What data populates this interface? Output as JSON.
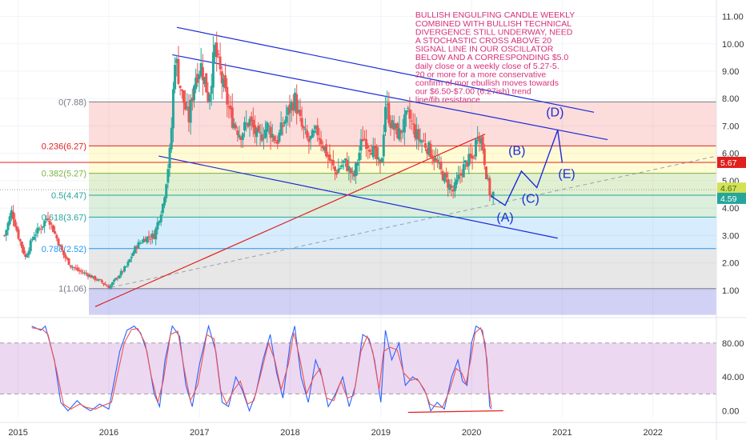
{
  "chart_data": [
    {
      "type": "candlestick",
      "title": "",
      "xlabel": "",
      "ylabel": "",
      "x_range": [
        2014.8,
        2022.7
      ],
      "ylim": [
        0.0,
        11.6
      ],
      "x_ticks": [
        {
          "v": 2015,
          "label": "2015"
        },
        {
          "v": 2016,
          "label": "2016"
        },
        {
          "v": 2017,
          "label": "2017"
        },
        {
          "v": 2018,
          "label": "2018"
        },
        {
          "v": 2019,
          "label": "2019"
        },
        {
          "v": 2020,
          "label": "2020"
        },
        {
          "v": 2021,
          "label": "2021"
        },
        {
          "v": 2022,
          "label": "2022"
        }
      ],
      "y_ticks": [
        {
          "v": 1,
          "label": "1.00"
        },
        {
          "v": 2,
          "label": "2.00"
        },
        {
          "v": 3,
          "label": "3.00"
        },
        {
          "v": 4,
          "label": "4.00"
        },
        {
          "v": 5,
          "label": "5.00"
        },
        {
          "v": 6,
          "label": "6.00"
        },
        {
          "v": 7,
          "label": "7.00"
        },
        {
          "v": 8,
          "label": "8.00"
        },
        {
          "v": 9,
          "label": "9.00"
        },
        {
          "v": 10,
          "label": "10.00"
        },
        {
          "v": 11,
          "label": "11.00"
        }
      ],
      "grid": true,
      "colors": {
        "up": "#26a69a",
        "down": "#ef5350",
        "channel": "#1c2bd6",
        "trendline": "#e0201c",
        "wave": "#1c2bd6",
        "dashed": "#9aa0a6"
      },
      "price_path": [
        [
          2014.85,
          3.0
        ],
        [
          2014.93,
          3.9
        ],
        [
          2015.0,
          3.0
        ],
        [
          2015.08,
          2.2
        ],
        [
          2015.17,
          3.0
        ],
        [
          2015.25,
          3.3
        ],
        [
          2015.33,
          3.7
        ],
        [
          2015.4,
          3.1
        ],
        [
          2015.5,
          2.3
        ],
        [
          2015.58,
          1.9
        ],
        [
          2015.67,
          1.7
        ],
        [
          2015.75,
          1.6
        ],
        [
          2015.83,
          1.45
        ],
        [
          2015.92,
          1.3
        ],
        [
          2016.0,
          1.1
        ],
        [
          2016.1,
          1.5
        ],
        [
          2016.2,
          1.9
        ],
        [
          2016.3,
          2.6
        ],
        [
          2016.4,
          2.9
        ],
        [
          2016.5,
          3.0
        ],
        [
          2016.6,
          4.2
        ],
        [
          2016.68,
          6.2
        ],
        [
          2016.73,
          9.6
        ],
        [
          2016.8,
          8.2
        ],
        [
          2016.88,
          7.2
        ],
        [
          2016.95,
          8.8
        ],
        [
          2017.02,
          9.2
        ],
        [
          2017.1,
          8.0
        ],
        [
          2017.17,
          9.8
        ],
        [
          2017.25,
          8.6
        ],
        [
          2017.35,
          7.3
        ],
        [
          2017.45,
          6.7
        ],
        [
          2017.55,
          7.2
        ],
        [
          2017.65,
          6.5
        ],
        [
          2017.75,
          7.0
        ],
        [
          2017.85,
          6.4
        ],
        [
          2017.95,
          7.3
        ],
        [
          2018.05,
          8.0
        ],
        [
          2018.12,
          7.0
        ],
        [
          2018.2,
          6.4
        ],
        [
          2018.3,
          6.8
        ],
        [
          2018.4,
          6.0
        ],
        [
          2018.5,
          5.3
        ],
        [
          2018.6,
          5.7
        ],
        [
          2018.7,
          5.1
        ],
        [
          2018.8,
          6.6
        ],
        [
          2018.9,
          6.2
        ],
        [
          2019.0,
          5.4
        ],
        [
          2019.05,
          7.8
        ],
        [
          2019.12,
          7.0
        ],
        [
          2019.2,
          6.7
        ],
        [
          2019.3,
          7.4
        ],
        [
          2019.4,
          6.6
        ],
        [
          2019.5,
          6.3
        ],
        [
          2019.58,
          5.9
        ],
        [
          2019.65,
          5.4
        ],
        [
          2019.72,
          5.0
        ],
        [
          2019.8,
          4.6
        ],
        [
          2019.88,
          5.3
        ],
        [
          2019.95,
          5.7
        ],
        [
          2020.02,
          5.8
        ],
        [
          2020.07,
          6.9
        ],
        [
          2020.12,
          6.3
        ],
        [
          2020.17,
          5.1
        ],
        [
          2020.21,
          4.4
        ],
        [
          2020.25,
          4.55
        ]
      ],
      "last_price": 4.59,
      "ma_level": 4.67,
      "resistance_level": 5.67,
      "fib_levels": [
        {
          "ratio": 0,
          "price": 7.88,
          "label": "0(7.88)",
          "color": "#787b86",
          "band": "rgba(239,83,80,0.20)"
        },
        {
          "ratio": 0.236,
          "price": 6.27,
          "label": "0.236(6.27)",
          "color": "#e0201c",
          "band": "rgba(255,235,59,0.22)"
        },
        {
          "ratio": 0.382,
          "price": 5.27,
          "label": "0.382(5.27)",
          "color": "#7cb342",
          "band": "rgba(139,195,74,0.25)"
        },
        {
          "ratio": 0.5,
          "price": 4.47,
          "label": "0.5(4.47)",
          "color": "#26a69a",
          "band": "rgba(76,175,80,0.20)"
        },
        {
          "ratio": 0.618,
          "price": 3.67,
          "label": "0.618(3.67)",
          "color": "#26a69a",
          "band": "rgba(33,150,243,0.18)"
        },
        {
          "ratio": 0.786,
          "price": 2.52,
          "label": "0.786(2.52)",
          "color": "#2196f3",
          "band": "rgba(158,158,158,0.25)"
        },
        {
          "ratio": 1,
          "price": 1.06,
          "label": "1(1.06)",
          "color": "#787b86",
          "band": "rgba(104,104,226,0.30)"
        }
      ],
      "channel_upper": [
        [
          2016.75,
          10.6
        ],
        [
          2021.35,
          7.5
        ]
      ],
      "channel_upper_inner": [
        [
          2016.7,
          9.6
        ],
        [
          2021.5,
          6.5
        ]
      ],
      "channel_lower": [
        [
          2016.55,
          5.9
        ],
        [
          2020.95,
          2.9
        ]
      ],
      "trendline_red": [
        [
          2015.85,
          0.4
        ],
        [
          2020.15,
          6.7
        ]
      ],
      "dashed_support": [
        [
          2015.95,
          1.05
        ],
        [
          2022.7,
          5.9
        ]
      ],
      "wave_projection": [
        [
          2020.21,
          4.45
        ],
        [
          2020.37,
          4.1
        ],
        [
          2020.55,
          5.35
        ],
        [
          2020.72,
          4.75
        ],
        [
          2020.95,
          6.85
        ],
        [
          2021.0,
          5.65
        ]
      ],
      "wave_labels": [
        {
          "label": "(A)",
          "x": 2020.37,
          "y": 3.5
        },
        {
          "label": "(B)",
          "x": 2020.5,
          "y": 5.95
        },
        {
          "label": "(C)",
          "x": 2020.65,
          "y": 4.2
        },
        {
          "label": "(D)",
          "x": 2020.92,
          "y": 7.35
        },
        {
          "label": "(E)",
          "x": 2021.05,
          "y": 5.1
        }
      ],
      "annotation_lines": [
        "BULLISH ENGULFING CANDLE WEEKLY",
        "COMBINED WITH BULLISH TECHNICAL",
        "DIVERGENCE STILL UNDERWAY, NEED",
        "A STOCHASTIC CROSS ABOVE 20",
        "SIGNAL LINE IN OUR OSCILLATOR",
        "BELOW AND A CORRESPONDING $5.0",
        "daily close or a weekly close of 5.27-5.",
        "20 or more for a more conservative",
        "confirm of mor ebullish moves towards",
        "our $6.50-$7.00 (6.27ish) trend",
        "line/fib resistance"
      ],
      "price_tags": [
        {
          "label": "5.67",
          "bg": "#e0201c",
          "fg": "#ffffff"
        },
        {
          "label": "4.67",
          "bg": "#d4e157",
          "fg": "#33691e"
        },
        {
          "label": "4.59",
          "bg": "#26a69a",
          "fg": "#ffffff"
        }
      ]
    },
    {
      "type": "line",
      "title": "",
      "xlabel": "",
      "ylabel": "",
      "ylim": [
        -8,
        110
      ],
      "y_ticks": [
        {
          "v": 0,
          "label": "0.00"
        },
        {
          "v": 40,
          "label": "40.00"
        },
        {
          "v": 80,
          "label": "80.00"
        }
      ],
      "band": [
        20,
        80
      ],
      "band_color": "rgba(156,39,176,0.18)",
      "colors": {
        "k": "#2962ff",
        "d": "#ef5350",
        "divergence": "#e0201c"
      },
      "series": [
        {
          "values": [
            [
              2015.15,
              100
            ],
            [
              2015.25,
              95
            ],
            [
              2015.3,
              100
            ],
            [
              2015.4,
              60
            ],
            [
              2015.47,
              10
            ],
            [
              2015.55,
              0
            ],
            [
              2015.65,
              12
            ],
            [
              2015.72,
              5
            ],
            [
              2015.8,
              0
            ],
            [
              2015.9,
              8
            ],
            [
              2016.0,
              2
            ],
            [
              2016.05,
              30
            ],
            [
              2016.12,
              70
            ],
            [
              2016.2,
              95
            ],
            [
              2016.28,
              100
            ],
            [
              2016.35,
              92
            ],
            [
              2016.42,
              70
            ],
            [
              2016.5,
              20
            ],
            [
              2016.56,
              5
            ],
            [
              2016.62,
              60
            ],
            [
              2016.7,
              100
            ],
            [
              2016.78,
              88
            ],
            [
              2016.85,
              30
            ],
            [
              2016.92,
              5
            ],
            [
              2017.0,
              55
            ],
            [
              2017.1,
              100
            ],
            [
              2017.18,
              70
            ],
            [
              2017.25,
              10
            ],
            [
              2017.32,
              5
            ],
            [
              2017.4,
              40
            ],
            [
              2017.47,
              25
            ],
            [
              2017.55,
              0
            ],
            [
              2017.62,
              20
            ],
            [
              2017.7,
              60
            ],
            [
              2017.78,
              90
            ],
            [
              2017.85,
              45
            ],
            [
              2017.92,
              15
            ],
            [
              2018.0,
              80
            ],
            [
              2018.05,
              100
            ],
            [
              2018.12,
              40
            ],
            [
              2018.2,
              10
            ],
            [
              2018.28,
              60
            ],
            [
              2018.35,
              40
            ],
            [
              2018.42,
              5
            ],
            [
              2018.5,
              20
            ],
            [
              2018.58,
              40
            ],
            [
              2018.65,
              5
            ],
            [
              2018.72,
              30
            ],
            [
              2018.8,
              90
            ],
            [
              2018.87,
              85
            ],
            [
              2018.93,
              60
            ],
            [
              2019.0,
              10
            ],
            [
              2019.05,
              95
            ],
            [
              2019.12,
              60
            ],
            [
              2019.2,
              80
            ],
            [
              2019.27,
              30
            ],
            [
              2019.35,
              40
            ],
            [
              2019.42,
              35
            ],
            [
              2019.5,
              20
            ],
            [
              2019.55,
              0
            ],
            [
              2019.62,
              10
            ],
            [
              2019.7,
              2
            ],
            [
              2019.78,
              40
            ],
            [
              2019.85,
              60
            ],
            [
              2019.9,
              35
            ],
            [
              2019.95,
              30
            ],
            [
              2020.0,
              80
            ],
            [
              2020.05,
              100
            ],
            [
              2020.12,
              95
            ],
            [
              2020.17,
              60
            ],
            [
              2020.2,
              5
            ],
            [
              2020.22,
              2
            ]
          ]
        },
        {
          "values": [
            [
              2015.15,
              98
            ],
            [
              2015.27,
              96
            ],
            [
              2015.33,
              90
            ],
            [
              2015.42,
              50
            ],
            [
              2015.5,
              8
            ],
            [
              2015.58,
              2
            ],
            [
              2015.68,
              8
            ],
            [
              2015.75,
              4
            ],
            [
              2015.85,
              2
            ],
            [
              2015.93,
              6
            ],
            [
              2016.03,
              10
            ],
            [
              2016.1,
              45
            ],
            [
              2016.17,
              80
            ],
            [
              2016.25,
              96
            ],
            [
              2016.32,
              97
            ],
            [
              2016.4,
              80
            ],
            [
              2016.47,
              40
            ],
            [
              2016.54,
              10
            ],
            [
              2016.6,
              35
            ],
            [
              2016.68,
              90
            ],
            [
              2016.76,
              94
            ],
            [
              2016.83,
              50
            ],
            [
              2016.9,
              12
            ],
            [
              2016.98,
              30
            ],
            [
              2017.08,
              90
            ],
            [
              2017.16,
              85
            ],
            [
              2017.23,
              25
            ],
            [
              2017.3,
              8
            ],
            [
              2017.38,
              25
            ],
            [
              2017.45,
              35
            ],
            [
              2017.53,
              8
            ],
            [
              2017.6,
              12
            ],
            [
              2017.68,
              45
            ],
            [
              2017.76,
              80
            ],
            [
              2017.83,
              60
            ],
            [
              2017.9,
              25
            ],
            [
              2017.98,
              55
            ],
            [
              2018.04,
              92
            ],
            [
              2018.1,
              65
            ],
            [
              2018.18,
              20
            ],
            [
              2018.26,
              40
            ],
            [
              2018.33,
              50
            ],
            [
              2018.4,
              15
            ],
            [
              2018.48,
              12
            ],
            [
              2018.56,
              35
            ],
            [
              2018.63,
              15
            ],
            [
              2018.7,
              18
            ],
            [
              2018.78,
              70
            ],
            [
              2018.85,
              88
            ],
            [
              2018.91,
              70
            ],
            [
              2018.98,
              25
            ],
            [
              2019.03,
              70
            ],
            [
              2019.1,
              75
            ],
            [
              2019.18,
              72
            ],
            [
              2019.25,
              45
            ],
            [
              2019.33,
              36
            ],
            [
              2019.4,
              38
            ],
            [
              2019.48,
              25
            ],
            [
              2019.54,
              8
            ],
            [
              2019.6,
              5
            ],
            [
              2019.68,
              4
            ],
            [
              2019.76,
              25
            ],
            [
              2019.83,
              50
            ],
            [
              2019.89,
              45
            ],
            [
              2019.94,
              32
            ],
            [
              2019.99,
              60
            ],
            [
              2020.04,
              92
            ],
            [
              2020.1,
              98
            ],
            [
              2020.15,
              80
            ],
            [
              2020.19,
              25
            ],
            [
              2020.22,
              4
            ]
          ]
        }
      ],
      "divergence_line": [
        [
          2019.3,
          0
        ],
        [
          2020.35,
          2
        ]
      ]
    }
  ]
}
